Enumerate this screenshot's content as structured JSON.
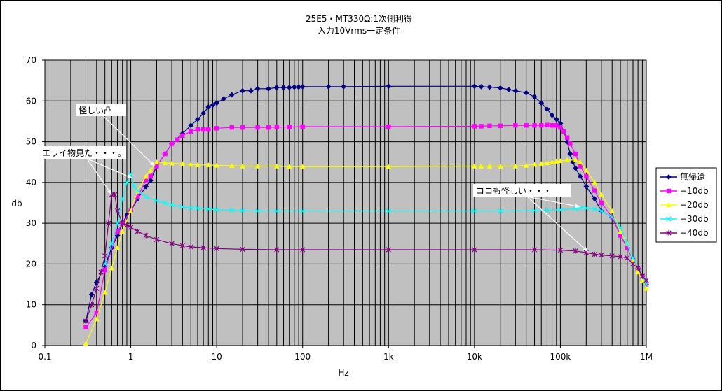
{
  "chart_data": {
    "type": "line",
    "title": [
      "25E5・MT330Ω:1次側利得",
      "入力10Vrms一定条件"
    ],
    "xlabel": "Hz",
    "ylabel": "db",
    "x_scale": "log",
    "xlim": [
      0.1,
      1000000
    ],
    "ylim": [
      0,
      70
    ],
    "y_ticks": [
      0,
      10,
      20,
      30,
      40,
      50,
      60,
      70
    ],
    "x_ticks": [
      {
        "v": 0.1,
        "label": "0.1"
      },
      {
        "v": 1,
        "label": "1"
      },
      {
        "v": 10,
        "label": "10"
      },
      {
        "v": 100,
        "label": "100"
      },
      {
        "v": 1000,
        "label": "1k"
      },
      {
        "v": 10000,
        "label": "10k"
      },
      {
        "v": 100000,
        "label": "100k"
      },
      {
        "v": 1000000,
        "label": "1M"
      }
    ],
    "grid": true,
    "plot_background": "#c0c0c0",
    "legend_position": "right",
    "series": [
      {
        "name": "無帰還",
        "color": "#000080",
        "marker": "diamond",
        "points": [
          [
            0.3,
            6
          ],
          [
            0.35,
            12.5
          ],
          [
            0.4,
            15.5
          ],
          [
            0.5,
            19.5
          ],
          [
            0.6,
            24
          ],
          [
            0.7,
            27
          ],
          [
            0.8,
            30
          ],
          [
            0.9,
            32
          ],
          [
            1,
            33
          ],
          [
            1.2,
            36
          ],
          [
            1.5,
            39
          ],
          [
            1.7,
            40.5
          ],
          [
            2,
            44
          ],
          [
            2.5,
            47
          ],
          [
            3,
            49.5
          ],
          [
            4,
            52
          ],
          [
            5,
            54
          ],
          [
            6,
            55.5
          ],
          [
            7,
            57
          ],
          [
            8,
            58.5
          ],
          [
            9,
            59
          ],
          [
            10,
            59.5
          ],
          [
            12,
            60.5
          ],
          [
            15,
            61.5
          ],
          [
            20,
            62.5
          ],
          [
            25,
            62.5
          ],
          [
            30,
            63
          ],
          [
            40,
            63
          ],
          [
            50,
            63.3
          ],
          [
            60,
            63.3
          ],
          [
            70,
            63.3
          ],
          [
            80,
            63.4
          ],
          [
            90,
            63.4
          ],
          [
            100,
            63.5
          ],
          [
            200,
            63.5
          ],
          [
            300,
            63.5
          ],
          [
            1000,
            63.6
          ],
          [
            10000,
            63.6
          ],
          [
            12000,
            63.5
          ],
          [
            15000,
            63.4
          ],
          [
            20000,
            63.2
          ],
          [
            25000,
            62.8
          ],
          [
            30000,
            62.5
          ],
          [
            40000,
            62
          ],
          [
            50000,
            61
          ],
          [
            60000,
            59.5
          ],
          [
            70000,
            58
          ],
          [
            80000,
            56.5
          ],
          [
            90000,
            55.5
          ],
          [
            100000,
            54.5
          ],
          [
            110000,
            52.5
          ],
          [
            120000,
            50
          ],
          [
            130000,
            47
          ],
          [
            140000,
            45
          ],
          [
            150000,
            43.5
          ],
          [
            170000,
            41.5
          ],
          [
            200000,
            39
          ],
          [
            250000,
            36
          ],
          [
            300000,
            33
          ],
          [
            400000,
            31.5
          ],
          [
            500000,
            27
          ],
          [
            600000,
            24
          ],
          [
            700000,
            21
          ],
          [
            800000,
            19
          ],
          [
            900000,
            17
          ],
          [
            1000000,
            15
          ]
        ]
      },
      {
        "name": "−10db",
        "color": "#ff00ff",
        "marker": "square",
        "points": [
          [
            0.3,
            4.5
          ],
          [
            0.4,
            8
          ],
          [
            0.5,
            18.5
          ],
          [
            0.7,
            28
          ],
          [
            0.8,
            30
          ],
          [
            1,
            33
          ],
          [
            1.2,
            36.5
          ],
          [
            1.5,
            40.5
          ],
          [
            1.7,
            41.5
          ],
          [
            2,
            44
          ],
          [
            2.5,
            47
          ],
          [
            3,
            49.5
          ],
          [
            3.5,
            50.5
          ],
          [
            4,
            51.5
          ],
          [
            5,
            52.5
          ],
          [
            6,
            53
          ],
          [
            7,
            53
          ],
          [
            8,
            53
          ],
          [
            10,
            53.3
          ],
          [
            15,
            53.5
          ],
          [
            20,
            53.5
          ],
          [
            30,
            53.5
          ],
          [
            40,
            53.5
          ],
          [
            50,
            53.6
          ],
          [
            70,
            53.6
          ],
          [
            100,
            53.7
          ],
          [
            1000,
            53.7
          ],
          [
            10000,
            53.8
          ],
          [
            12000,
            53.8
          ],
          [
            15000,
            53.9
          ],
          [
            20000,
            53.9
          ],
          [
            30000,
            54
          ],
          [
            40000,
            54
          ],
          [
            50000,
            54
          ],
          [
            60000,
            54
          ],
          [
            70000,
            54.1
          ],
          [
            80000,
            54
          ],
          [
            90000,
            54
          ],
          [
            100000,
            53.5
          ],
          [
            110000,
            52.5
          ],
          [
            120000,
            51
          ],
          [
            130000,
            49.5
          ],
          [
            150000,
            47
          ],
          [
            170000,
            44
          ],
          [
            200000,
            41.5
          ],
          [
            250000,
            38
          ],
          [
            300000,
            35
          ],
          [
            400000,
            31.5
          ],
          [
            500000,
            27
          ],
          [
            600000,
            24
          ],
          [
            700000,
            21
          ],
          [
            800000,
            19
          ],
          [
            900000,
            17
          ],
          [
            1000000,
            15
          ]
        ]
      },
      {
        "name": "−20db",
        "color": "#ffff00",
        "marker": "triangle",
        "points": [
          [
            0.3,
            0.5
          ],
          [
            0.4,
            6.5
          ],
          [
            0.5,
            13
          ],
          [
            0.6,
            19
          ],
          [
            0.7,
            24
          ],
          [
            0.8,
            28
          ],
          [
            1,
            33
          ],
          [
            1.2,
            38
          ],
          [
            1.5,
            41.5
          ],
          [
            1.7,
            43
          ],
          [
            2,
            45
          ],
          [
            2.5,
            44.8
          ],
          [
            3,
            44.7
          ],
          [
            4,
            44.6
          ],
          [
            5,
            44.4
          ],
          [
            6,
            44.3
          ],
          [
            8,
            44.3
          ],
          [
            10,
            44.2
          ],
          [
            15,
            44.1
          ],
          [
            20,
            44
          ],
          [
            30,
            44
          ],
          [
            50,
            44
          ],
          [
            70,
            43.9
          ],
          [
            100,
            43.9
          ],
          [
            1000,
            43.9
          ],
          [
            10000,
            44
          ],
          [
            12000,
            44
          ],
          [
            15000,
            44
          ],
          [
            20000,
            44
          ],
          [
            30000,
            44
          ],
          [
            40000,
            44.2
          ],
          [
            50000,
            44.4
          ],
          [
            60000,
            44.6
          ],
          [
            70000,
            44.8
          ],
          [
            80000,
            45
          ],
          [
            90000,
            45.2
          ],
          [
            100000,
            45.3
          ],
          [
            120000,
            45.5
          ],
          [
            150000,
            45.5
          ],
          [
            170000,
            45
          ],
          [
            200000,
            43
          ],
          [
            250000,
            40
          ],
          [
            300000,
            37
          ],
          [
            400000,
            33
          ],
          [
            500000,
            28
          ],
          [
            600000,
            25
          ],
          [
            700000,
            21
          ],
          [
            800000,
            18
          ],
          [
            900000,
            16
          ],
          [
            1000000,
            14
          ]
        ]
      },
      {
        "name": "−30db",
        "color": "#00ffff",
        "marker": "x",
        "points": [
          [
            0.5,
            20
          ],
          [
            0.6,
            25
          ],
          [
            0.7,
            30
          ],
          [
            0.8,
            36
          ],
          [
            0.9,
            40
          ],
          [
            1,
            42
          ],
          [
            1.1,
            39
          ],
          [
            1.2,
            38
          ],
          [
            1.5,
            36.5
          ],
          [
            2,
            35.5
          ],
          [
            2.5,
            35
          ],
          [
            3,
            34.5
          ],
          [
            4,
            34
          ],
          [
            5,
            33.8
          ],
          [
            6,
            33.7
          ],
          [
            8,
            33.5
          ],
          [
            10,
            33.3
          ],
          [
            15,
            33.2
          ],
          [
            20,
            33.1
          ],
          [
            30,
            33
          ],
          [
            50,
            33
          ],
          [
            100,
            33
          ],
          [
            1000,
            33
          ],
          [
            10000,
            33
          ],
          [
            20000,
            33
          ],
          [
            50000,
            33.1
          ],
          [
            70000,
            33.2
          ],
          [
            100000,
            33.3
          ],
          [
            150000,
            33.6
          ],
          [
            170000,
            33.8
          ],
          [
            200000,
            33.7
          ],
          [
            250000,
            33.5
          ],
          [
            300000,
            33
          ],
          [
            400000,
            31.5
          ],
          [
            500000,
            29
          ],
          [
            600000,
            25
          ],
          [
            700000,
            21.5
          ],
          [
            800000,
            19
          ],
          [
            900000,
            17
          ],
          [
            1000000,
            15
          ]
        ]
      },
      {
        "name": "−40db",
        "color": "#800080",
        "marker": "asterisk",
        "points": [
          [
            0.3,
            6
          ],
          [
            0.35,
            10
          ],
          [
            0.4,
            14
          ],
          [
            0.45,
            18
          ],
          [
            0.5,
            22
          ],
          [
            0.55,
            30
          ],
          [
            0.6,
            37
          ],
          [
            0.65,
            37
          ],
          [
            0.7,
            33
          ],
          [
            0.8,
            30
          ],
          [
            0.9,
            29.5
          ],
          [
            1,
            29
          ],
          [
            1.2,
            28
          ],
          [
            1.5,
            27
          ],
          [
            2,
            26
          ],
          [
            3,
            25
          ],
          [
            4,
            24.5
          ],
          [
            5,
            24.2
          ],
          [
            7,
            24
          ],
          [
            10,
            23.8
          ],
          [
            20,
            23.6
          ],
          [
            50,
            23.5
          ],
          [
            100,
            23.5
          ],
          [
            1000,
            23.5
          ],
          [
            10000,
            23.5
          ],
          [
            50000,
            23.5
          ],
          [
            100000,
            23.4
          ],
          [
            150000,
            23.2
          ],
          [
            200000,
            22.8
          ],
          [
            250000,
            22.4
          ],
          [
            300000,
            22.2
          ],
          [
            400000,
            22
          ],
          [
            500000,
            21.8
          ],
          [
            600000,
            21.5
          ],
          [
            700000,
            20
          ],
          [
            800000,
            19
          ],
          [
            900000,
            17
          ],
          [
            1000000,
            16
          ]
        ]
      }
    ],
    "annotations": [
      {
        "text": "怪しい凸",
        "target": [
          1.9,
          44
        ]
      },
      {
        "text": "エライ物見た・・・。",
        "target": [
          0.6,
          37
        ],
        "target2": [
          1.05,
          41
        ]
      },
      {
        "text": "ココも怪しい・・・",
        "target": [
          170000,
          34
        ],
        "target2": [
          210000,
          23
        ]
      }
    ]
  }
}
